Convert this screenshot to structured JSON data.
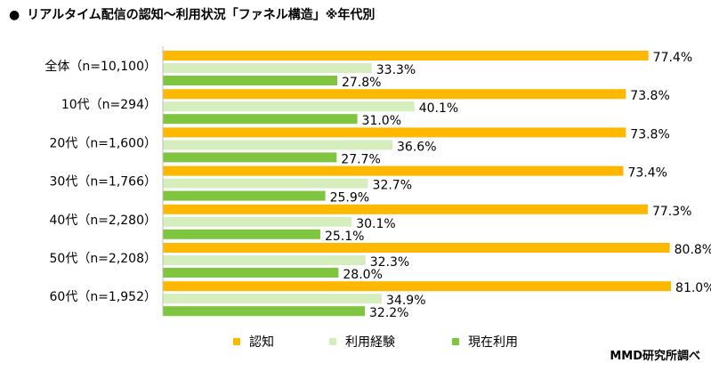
{
  "title": "リアルタイム配信の認知～利用状況「ファネル構造」※年代別",
  "bullet": "●",
  "credit": "MMD研究所調べ",
  "colors": {
    "認知": "#FFB800",
    "利用経験": "#D6EDBE",
    "現在利用": "#7FC53F"
  },
  "chart_data": {
    "type": "bar",
    "orientation": "horizontal",
    "categories": [
      "全体（n=10,100）",
      "10代（n=294）",
      "20代（n=1,600）",
      "30代（n=1,766）",
      "40代（n=2,280）",
      "50代（n=2,208）",
      "60代（n=1,952）"
    ],
    "series": [
      {
        "name": "認知",
        "values": [
          77.4,
          73.8,
          73.8,
          73.4,
          77.3,
          80.8,
          81.0
        ]
      },
      {
        "name": "利用経験",
        "values": [
          33.3,
          40.1,
          36.6,
          32.7,
          30.1,
          32.3,
          34.9
        ]
      },
      {
        "name": "現在利用",
        "values": [
          27.8,
          31.0,
          27.7,
          25.9,
          25.1,
          28.0,
          32.2
        ]
      }
    ],
    "value_suffix": "%",
    "xlim": [
      0,
      100
    ],
    "grid": false,
    "legend_position": "bottom"
  }
}
